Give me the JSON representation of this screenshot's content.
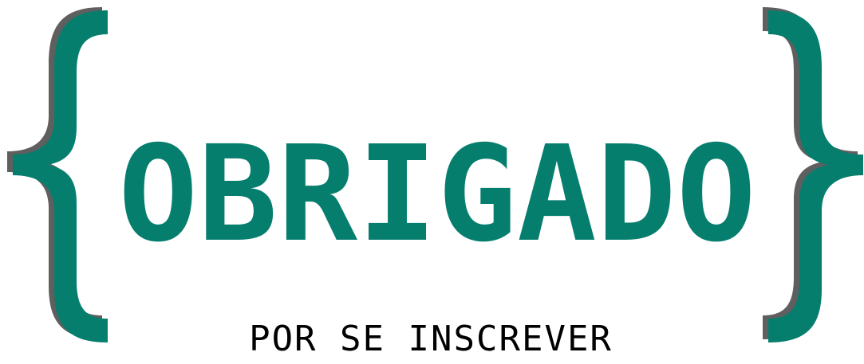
{
  "logo": {
    "title": "OBRIGADO",
    "subtitle": "POR SE INSCREVER",
    "colors": {
      "accent": "#067e6e",
      "shadow": "#5f5f5f",
      "subtitle": "#000000",
      "background": "#ffffff"
    },
    "icons": {
      "left": "left-curly-brace-icon",
      "right": "right-curly-brace-icon"
    }
  }
}
